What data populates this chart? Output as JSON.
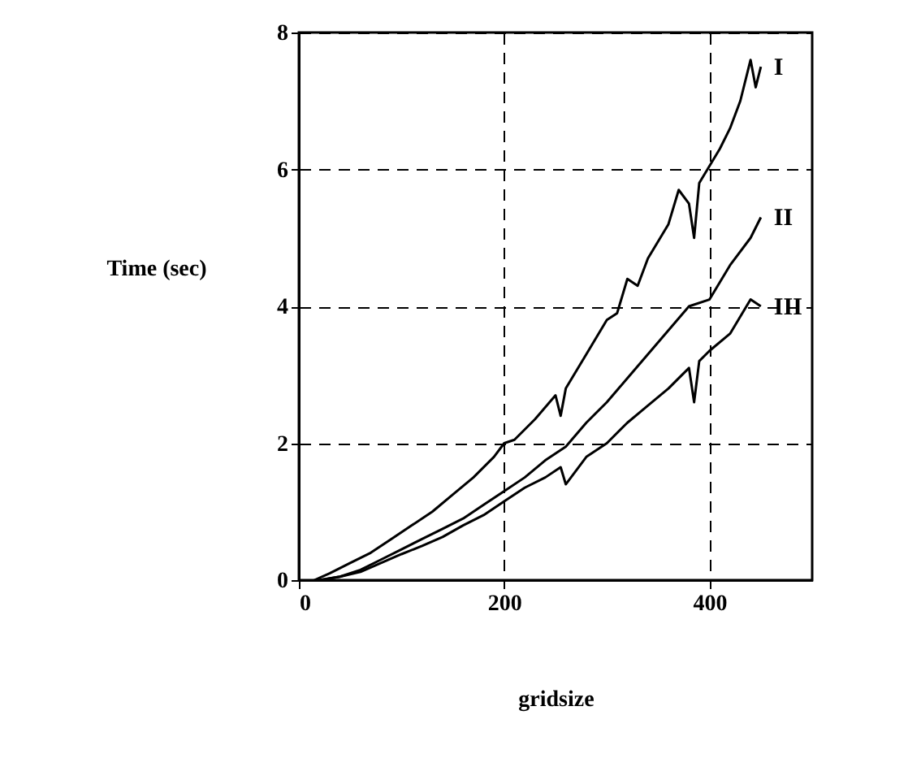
{
  "chart_data": {
    "type": "line",
    "xlabel": "gridsize",
    "ylabel": "Time (sec)",
    "xlim": [
      0,
      500
    ],
    "xticks": [
      0,
      200,
      400
    ],
    "ylim": [
      0,
      8
    ],
    "yticks": [
      0,
      2,
      4,
      6,
      8
    ],
    "grid": true,
    "legend": false,
    "marker": "none",
    "line_style": "solid",
    "series": [
      {
        "name": "I",
        "color": "#000000",
        "x": [
          15,
          30,
          50,
          70,
          90,
          110,
          130,
          150,
          170,
          190,
          200,
          210,
          230,
          250,
          255,
          260,
          280,
          300,
          310,
          320,
          330,
          340,
          360,
          370,
          380,
          385,
          390,
          400,
          410,
          420,
          430,
          440,
          445,
          450
        ],
        "values": [
          0,
          0.1,
          0.25,
          0.4,
          0.6,
          0.8,
          1.0,
          1.25,
          1.5,
          1.8,
          2.0,
          2.05,
          2.35,
          2.7,
          2.4,
          2.8,
          3.3,
          3.8,
          3.9,
          4.4,
          4.3,
          4.7,
          5.2,
          5.7,
          5.5,
          5.0,
          5.8,
          6.05,
          6.3,
          6.6,
          7.0,
          7.6,
          7.2,
          7.5
        ]
      },
      {
        "name": "II",
        "color": "#000000",
        "x": [
          20,
          40,
          60,
          80,
          100,
          120,
          140,
          160,
          180,
          200,
          220,
          240,
          260,
          280,
          300,
          320,
          340,
          360,
          380,
          400,
          420,
          440,
          450
        ],
        "values": [
          0,
          0.05,
          0.15,
          0.3,
          0.45,
          0.6,
          0.75,
          0.9,
          1.1,
          1.3,
          1.5,
          1.75,
          1.95,
          2.3,
          2.6,
          2.95,
          3.3,
          3.65,
          4.0,
          4.1,
          4.6,
          5.0,
          5.3
        ]
      },
      {
        "name": "III",
        "color": "#000000",
        "x": [
          20,
          40,
          60,
          80,
          100,
          120,
          140,
          160,
          180,
          200,
          220,
          240,
          255,
          260,
          280,
          300,
          320,
          340,
          360,
          380,
          385,
          390,
          400,
          420,
          440,
          450
        ],
        "values": [
          0,
          0.05,
          0.12,
          0.25,
          0.38,
          0.5,
          0.63,
          0.8,
          0.95,
          1.15,
          1.35,
          1.5,
          1.65,
          1.4,
          1.8,
          2.0,
          2.3,
          2.55,
          2.8,
          3.1,
          2.6,
          3.2,
          3.35,
          3.6,
          4.1,
          4.0
        ]
      }
    ]
  }
}
